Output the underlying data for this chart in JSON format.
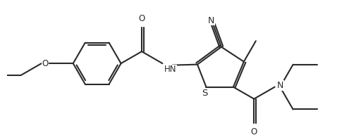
{
  "background_color": "#ffffff",
  "line_color": "#2a2a2a",
  "line_width": 1.5,
  "font_size": 8.5,
  "figsize": [
    4.95,
    1.99
  ],
  "dpi": 100,
  "xlim": [
    0,
    9.5
  ],
  "ylim": [
    0,
    3.8
  ]
}
